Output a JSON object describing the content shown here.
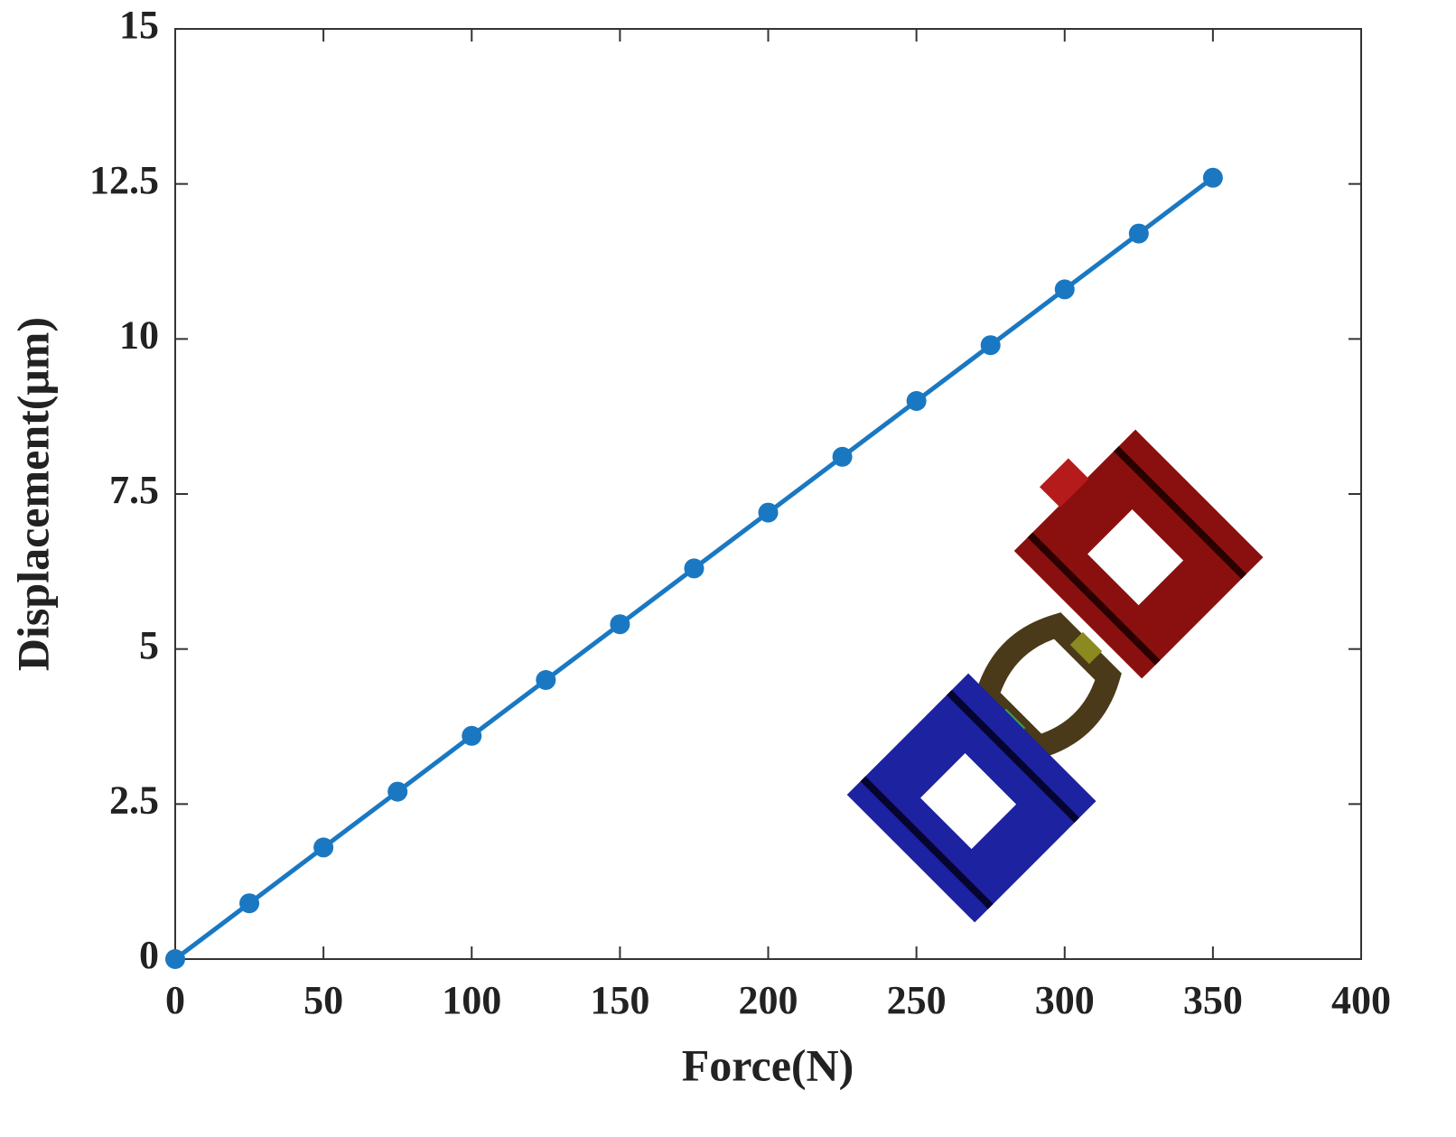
{
  "chart_data": {
    "type": "line",
    "x_label": "Force(N)",
    "y_label": "Displacement(μm)",
    "x": [
      0,
      25,
      50,
      75,
      100,
      125,
      150,
      175,
      200,
      225,
      250,
      275,
      300,
      325,
      350
    ],
    "series": [
      {
        "name": "Displacement",
        "color": "#1a78c2",
        "values": [
          0,
          0.9,
          1.8,
          2.7,
          3.6,
          4.5,
          5.4,
          6.3,
          7.2,
          8.1,
          9.0,
          9.9,
          10.8,
          11.7,
          12.6
        ]
      }
    ],
    "xlim": [
      0,
      400
    ],
    "xticks": [
      0,
      50,
      100,
      150,
      200,
      250,
      300,
      350,
      400
    ],
    "ylim": [
      0,
      15
    ],
    "yticks": [
      0,
      2.5,
      5,
      7.5,
      10,
      12.5,
      15
    ]
  }
}
